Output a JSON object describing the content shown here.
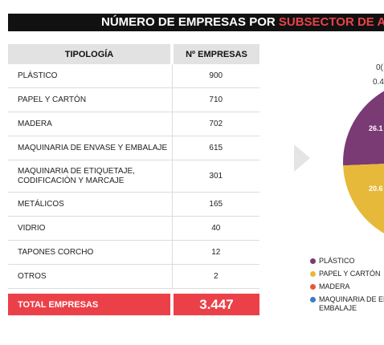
{
  "title": {
    "part1": "NÚMERO DE EMPRESAS POR ",
    "part2": "SUBSECTOR DE A"
  },
  "table": {
    "headers": [
      "TIPOLOGÍA",
      "Nº EMPRESAS"
    ],
    "rows": [
      {
        "label": "PLÁSTICO",
        "value": "900"
      },
      {
        "label": "PAPEL Y CARTÓN",
        "value": "710"
      },
      {
        "label": "MADERA",
        "value": "702"
      },
      {
        "label": "MAQUINARIA DE ENVASE Y EMBALAJE",
        "value": "615"
      },
      {
        "label": "MAQUINARIA DE ETIQUETAJE,",
        "label2": "CODIFICACIÓN Y MARCAJE",
        "value": "301"
      },
      {
        "label": "METÁLICOS",
        "value": "165"
      },
      {
        "label": "VIDRIO",
        "value": "40"
      },
      {
        "label": "TAPONES CORCHO",
        "value": "12"
      },
      {
        "label": "OTROS",
        "value": "2"
      }
    ],
    "total": {
      "label": "TOTAL EMPRESAS",
      "value": "3.447"
    }
  },
  "pie": {
    "top_labels": [
      "0(",
      "0.4"
    ],
    "slice_labels": [
      "26.1",
      "20.6"
    ],
    "colors": {
      "plastico": "#7a3a73",
      "papel": "#e6b93a",
      "madera": "#e5583b",
      "maquinaria": "#3a7cc8",
      "accent": "#ec4049"
    }
  },
  "legend": [
    {
      "label": "PLÁSTICO",
      "color": "#7a3a73"
    },
    {
      "label": "PAPEL Y CARTÓN",
      "color": "#e6b93a"
    },
    {
      "label": "MADERA",
      "color": "#e5583b"
    },
    {
      "label": "MAQUINARIA DE ENVA",
      "label2": "EMBALAJE",
      "color": "#3a7cc8"
    }
  ]
}
